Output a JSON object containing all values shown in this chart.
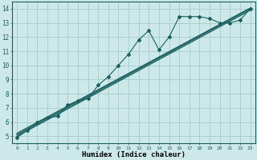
{
  "bg_color": "#cde8e8",
  "grid_color": "#aacece",
  "line_color": "#1a6060",
  "xlabel": "Humidex (Indice chaleur)",
  "xlim": [
    -0.5,
    23.5
  ],
  "ylim": [
    4.5,
    14.5
  ],
  "xticks": [
    0,
    1,
    2,
    3,
    4,
    5,
    6,
    7,
    8,
    9,
    10,
    11,
    12,
    13,
    14,
    15,
    16,
    17,
    18,
    19,
    20,
    21,
    22,
    23
  ],
  "yticks": [
    5,
    6,
    7,
    8,
    9,
    10,
    11,
    12,
    13,
    14
  ],
  "wavy_x": [
    0,
    1,
    2,
    3,
    4,
    5,
    6,
    7,
    8,
    9,
    10,
    11,
    12,
    13,
    14,
    15,
    16,
    17,
    18,
    19,
    20,
    21,
    22,
    23
  ],
  "wavy_y": [
    4.9,
    5.4,
    6.0,
    6.3,
    6.4,
    7.2,
    7.5,
    7.65,
    8.6,
    9.2,
    10.0,
    10.8,
    11.8,
    12.45,
    11.1,
    12.0,
    13.45,
    13.45,
    13.45,
    13.3,
    13.0,
    13.0,
    13.2,
    14.0
  ],
  "line1_x": [
    0,
    23
  ],
  "line1_y": [
    5.0,
    13.9
  ],
  "line2_x": [
    0,
    23
  ],
  "line2_y": [
    5.1,
    14.0
  ],
  "line3_x": [
    0,
    23
  ],
  "line3_y": [
    5.2,
    14.05
  ]
}
